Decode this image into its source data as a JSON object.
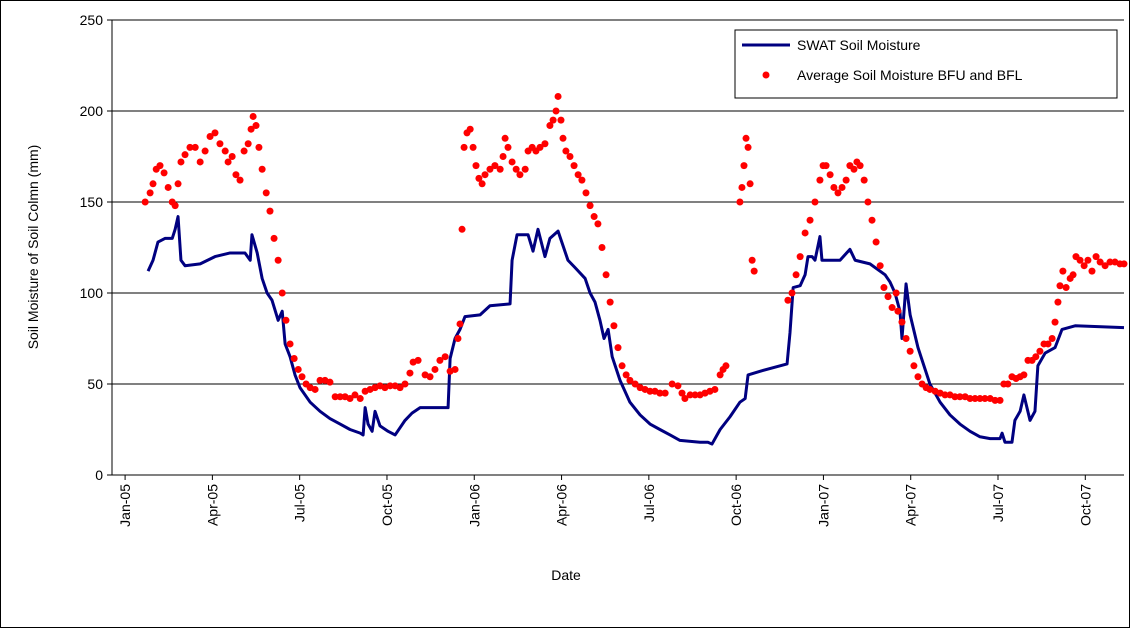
{
  "chart_data": {
    "type": "line",
    "x_label": "Date",
    "y_label": "Soil Moisture of Soil Colmn (mm)",
    "xlim": [
      -0.45,
      34.33
    ],
    "xticks": [
      {
        "value": 0,
        "label": "Jan-05"
      },
      {
        "value": 3,
        "label": "Apr-05"
      },
      {
        "value": 6,
        "label": "Jul-05"
      },
      {
        "value": 9,
        "label": "Oct-05"
      },
      {
        "value": 12,
        "label": "Jan-06"
      },
      {
        "value": 15,
        "label": "Apr-06"
      },
      {
        "value": 18,
        "label": "Jul-06"
      },
      {
        "value": 21,
        "label": "Oct-06"
      },
      {
        "value": 24,
        "label": "Jan-07"
      },
      {
        "value": 27,
        "label": "Apr-07"
      },
      {
        "value": 30,
        "label": "Jul-07"
      },
      {
        "value": 33,
        "label": "Oct-07"
      }
    ],
    "ylim": [
      0,
      250
    ],
    "yticks": [
      0,
      50,
      100,
      150,
      200,
      250
    ],
    "grid": true,
    "legend": "upper right",
    "series": [
      {
        "name": "SWAT Soil Moisture",
        "color": "#000080",
        "style": "line",
        "x": [
          0.79,
          0.96,
          1.13,
          1.37,
          1.62,
          1.72,
          1.82,
          1.92,
          2.06,
          2.58,
          3.09,
          3.61,
          4.12,
          4.3,
          4.36,
          4.54,
          4.71,
          4.88,
          5.05,
          5.26,
          5.4,
          5.5,
          5.67,
          5.84,
          6.01,
          6.36,
          6.7,
          7.04,
          7.39,
          7.73,
          8.08,
          8.18,
          8.25,
          8.35,
          8.49,
          8.59,
          8.76,
          9.04,
          9.28,
          9.45,
          9.62,
          9.86,
          10.14,
          11.1,
          11.17,
          11.34,
          11.51,
          11.68,
          12.2,
          12.54,
          13.23,
          13.3,
          13.47,
          13.85,
          14.02,
          14.19,
          14.43,
          14.6,
          14.88,
          15.22,
          15.46,
          15.81,
          15.98,
          16.15,
          16.32,
          16.46,
          16.6,
          16.74,
          17.01,
          17.35,
          17.7,
          18.04,
          18.38,
          18.73,
          19.07,
          19.76,
          20.03,
          20.17,
          20.45,
          20.79,
          21.13,
          21.31,
          21.41,
          21.82,
          22.51,
          22.75,
          22.85,
          22.96,
          23.2,
          23.37,
          23.47,
          23.61,
          23.71,
          23.88,
          23.95,
          24.23,
          24.57,
          24.91,
          25.09,
          25.6,
          26.12,
          26.29,
          26.46,
          26.63,
          26.7,
          26.77,
          26.84,
          26.98,
          27.25,
          27.66,
          28.01,
          28.35,
          28.69,
          29.04,
          29.38,
          29.73,
          30.07,
          30.14,
          30.24,
          30.48,
          30.58,
          30.76,
          30.89,
          31.1,
          31.27,
          31.37,
          31.62,
          31.96,
          32.2,
          32.65,
          34.33
        ],
        "values": [
          112,
          118,
          128,
          130,
          130,
          135,
          142,
          118,
          115,
          116,
          120,
          122,
          122,
          118,
          132,
          122,
          108,
          100,
          96,
          85,
          90,
          72,
          65,
          55,
          48,
          40,
          35,
          31,
          28,
          25,
          23,
          22,
          37,
          28,
          24,
          35,
          27,
          24,
          22,
          26,
          30,
          34,
          37,
          37,
          64,
          75,
          80,
          87,
          88,
          93,
          94,
          118,
          132,
          132,
          123,
          135,
          120,
          130,
          134,
          118,
          114,
          108,
          100,
          95,
          85,
          75,
          80,
          65,
          52,
          40,
          33,
          28,
          25,
          22,
          19,
          18,
          18,
          17,
          25,
          32,
          40,
          42,
          55,
          57,
          60,
          61,
          78,
          103,
          104,
          110,
          120,
          120,
          118,
          131,
          118,
          118,
          118,
          124,
          118,
          116,
          110,
          106,
          100,
          90,
          75,
          90,
          105,
          88,
          70,
          50,
          40,
          33,
          28,
          24,
          21,
          20,
          20,
          23,
          18,
          18,
          30,
          35,
          44,
          30,
          35,
          60,
          67,
          70,
          80,
          82,
          81
        ]
      },
      {
        "name": "Average Soil Moisture BFU and BFL",
        "color": "#ff0000",
        "style": "markers",
        "x": [
          0.69,
          0.86,
          0.96,
          1.07,
          1.2,
          1.34,
          1.48,
          1.62,
          1.72,
          1.82,
          1.92,
          2.06,
          2.23,
          2.41,
          2.58,
          2.75,
          2.92,
          3.09,
          3.26,
          3.44,
          3.54,
          3.68,
          3.81,
          3.95,
          4.09,
          4.23,
          4.33,
          4.4,
          4.5,
          4.6,
          4.71,
          4.85,
          4.98,
          5.12,
          5.26,
          5.4,
          5.53,
          5.67,
          5.81,
          5.95,
          6.08,
          6.22,
          6.36,
          6.53,
          6.7,
          6.87,
          7.04,
          7.22,
          7.39,
          7.56,
          7.73,
          7.9,
          8.08,
          8.25,
          8.42,
          8.59,
          8.76,
          8.93,
          9.11,
          9.28,
          9.45,
          9.62,
          9.79,
          9.9,
          10.07,
          10.31,
          10.48,
          10.65,
          10.82,
          11.0,
          11.17,
          11.34,
          11.44,
          11.51,
          11.58,
          11.65,
          11.75,
          11.86,
          11.96,
          12.06,
          12.16,
          12.27,
          12.37,
          12.54,
          12.71,
          12.89,
          12.99,
          13.06,
          13.16,
          13.3,
          13.44,
          13.57,
          13.75,
          13.85,
          13.99,
          14.12,
          14.26,
          14.43,
          14.6,
          14.71,
          14.81,
          14.88,
          14.98,
          15.05,
          15.15,
          15.29,
          15.43,
          15.57,
          15.7,
          15.84,
          15.98,
          16.12,
          16.25,
          16.39,
          16.53,
          16.67,
          16.8,
          16.94,
          17.08,
          17.22,
          17.35,
          17.53,
          17.7,
          17.87,
          18.04,
          18.21,
          18.38,
          18.56,
          18.8,
          19.0,
          19.14,
          19.24,
          19.42,
          19.59,
          19.76,
          19.93,
          20.1,
          20.27,
          20.45,
          20.55,
          20.65,
          21.13,
          21.2,
          21.27,
          21.34,
          21.41,
          21.48,
          21.55,
          21.62,
          22.78,
          22.92,
          23.06,
          23.2,
          23.37,
          23.54,
          23.71,
          23.88,
          23.99,
          24.09,
          24.23,
          24.36,
          24.5,
          24.64,
          24.78,
          24.91,
          25.05,
          25.15,
          25.26,
          25.4,
          25.53,
          25.67,
          25.81,
          25.95,
          26.08,
          26.22,
          26.36,
          26.5,
          26.56,
          26.7,
          26.84,
          26.98,
          27.11,
          27.25,
          27.39,
          27.53,
          27.66,
          27.84,
          28.01,
          28.18,
          28.35,
          28.52,
          28.69,
          28.87,
          29.04,
          29.21,
          29.38,
          29.55,
          29.73,
          29.9,
          30.07,
          30.2,
          30.34,
          30.48,
          30.62,
          30.76,
          30.89,
          31.03,
          31.17,
          31.3,
          31.44,
          31.58,
          31.72,
          31.86,
          31.96,
          32.06,
          32.13,
          32.23,
          32.34,
          32.48,
          32.58,
          32.68,
          32.82,
          32.96,
          33.09,
          33.23,
          33.37,
          33.51,
          33.68,
          33.85,
          34.02,
          34.19,
          34.33
        ],
        "values": [
          150,
          155,
          160,
          168,
          170,
          166,
          158,
          150,
          148,
          160,
          172,
          176,
          180,
          180,
          172,
          178,
          186,
          188,
          182,
          178,
          172,
          175,
          165,
          162,
          178,
          182,
          190,
          197,
          192,
          180,
          168,
          155,
          145,
          130,
          118,
          100,
          85,
          72,
          64,
          58,
          54,
          50,
          48,
          47,
          52,
          52,
          51,
          43,
          43,
          43,
          42,
          44,
          42,
          46,
          47,
          48,
          49,
          48,
          49,
          49,
          48,
          50,
          56,
          62,
          63,
          55,
          54,
          58,
          63,
          65,
          57,
          58,
          75,
          83,
          135,
          180,
          188,
          190,
          180,
          170,
          163,
          160,
          165,
          168,
          170,
          168,
          175,
          185,
          180,
          172,
          168,
          165,
          168,
          178,
          180,
          178,
          180,
          182,
          192,
          195,
          200,
          208,
          195,
          185,
          178,
          175,
          170,
          165,
          162,
          155,
          148,
          142,
          138,
          125,
          110,
          95,
          82,
          70,
          60,
          55,
          52,
          50,
          48,
          47,
          46,
          46,
          45,
          45,
          50,
          49,
          45,
          42,
          44,
          44,
          44,
          45,
          46,
          47,
          55,
          58,
          60,
          150,
          158,
          170,
          185,
          180,
          160,
          118,
          112,
          96,
          100,
          110,
          120,
          133,
          140,
          150,
          162,
          170,
          170,
          165,
          158,
          155,
          158,
          162,
          170,
          168,
          172,
          170,
          162,
          150,
          140,
          128,
          115,
          103,
          98,
          92,
          100,
          90,
          84,
          75,
          68,
          60,
          54,
          50,
          48,
          47,
          46,
          45,
          44,
          44,
          43,
          43,
          43,
          42,
          42,
          42,
          42,
          42,
          41,
          41,
          50,
          50,
          54,
          53,
          54,
          55,
          63,
          63,
          65,
          68,
          72,
          72,
          75,
          84,
          95,
          104,
          112,
          103,
          108,
          110,
          120,
          118,
          115,
          118,
          112,
          120,
          117,
          115,
          117,
          117,
          116,
          116
        ]
      }
    ]
  }
}
